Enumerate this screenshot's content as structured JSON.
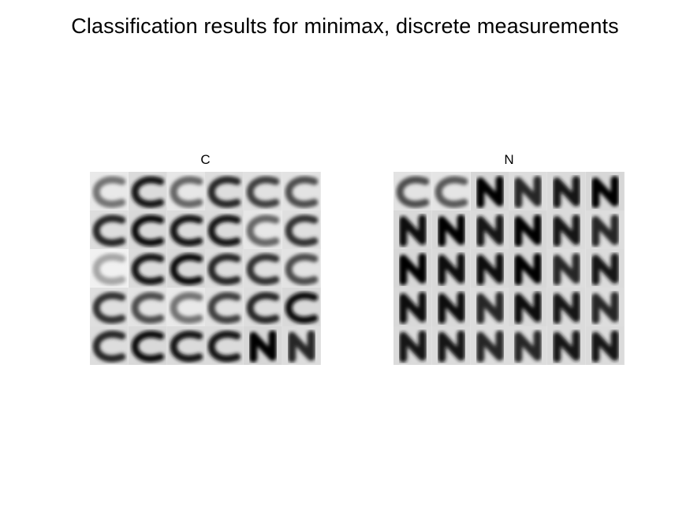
{
  "title": "Classification results for minimax, discrete measurements",
  "panels": [
    {
      "id": "c",
      "label": "C",
      "cells": [
        [
          "C",
          "C",
          "C",
          "C",
          "C",
          "C"
        ],
        [
          "C",
          "C",
          "C",
          "C",
          "C",
          "C"
        ],
        [
          "C",
          "C",
          "C",
          "C",
          "C",
          "C"
        ],
        [
          "C",
          "C",
          "C",
          "C",
          "C",
          "C"
        ],
        [
          "C",
          "C",
          "C",
          "C",
          "N",
          "N"
        ]
      ],
      "darkness": [
        [
          0.55,
          0.9,
          0.6,
          0.85,
          0.75,
          0.7
        ],
        [
          0.85,
          0.95,
          0.9,
          0.9,
          0.6,
          0.8
        ],
        [
          0.35,
          0.9,
          0.95,
          0.85,
          0.8,
          0.7
        ],
        [
          0.8,
          0.7,
          0.55,
          0.75,
          0.85,
          0.95
        ],
        [
          0.85,
          0.95,
          0.9,
          0.9,
          1.0,
          0.85
        ]
      ]
    },
    {
      "id": "n",
      "label": "N",
      "cells": [
        [
          "C",
          "C",
          "N",
          "N",
          "N",
          "N"
        ],
        [
          "N",
          "N",
          "N",
          "N",
          "N",
          "N"
        ],
        [
          "N",
          "N",
          "N",
          "N",
          "N",
          "N"
        ],
        [
          "N",
          "N",
          "N",
          "N",
          "N",
          "N"
        ],
        [
          "N",
          "N",
          "N",
          "N",
          "N",
          "N"
        ]
      ],
      "darkness": [
        [
          0.7,
          0.65,
          1.0,
          0.85,
          0.9,
          1.0
        ],
        [
          0.95,
          1.0,
          0.9,
          1.0,
          0.9,
          0.85
        ],
        [
          1.0,
          0.95,
          0.95,
          1.0,
          0.85,
          0.9
        ],
        [
          0.95,
          0.95,
          0.85,
          0.95,
          0.9,
          0.85
        ],
        [
          0.9,
          0.9,
          0.85,
          0.85,
          0.9,
          0.9
        ]
      ]
    }
  ]
}
